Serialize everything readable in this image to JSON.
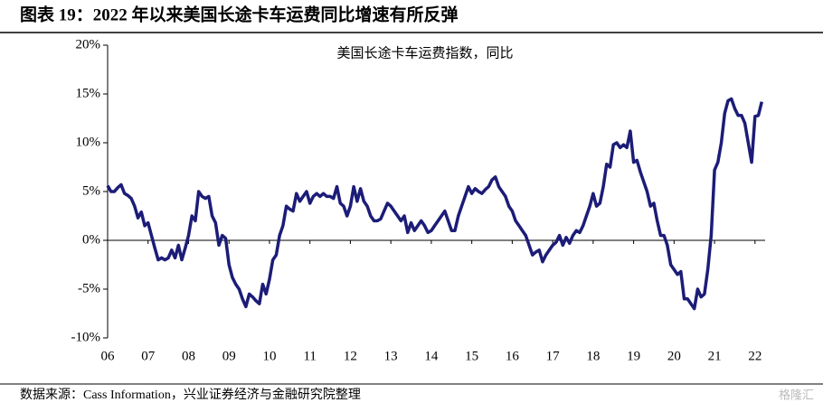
{
  "title": "图表 19：2022 年以来美国长途卡车运费同比增速有所反弹",
  "source": "数据来源：Cass Information，兴业证券经济与金融研究院整理",
  "watermark": "格隆汇",
  "chart_data": {
    "type": "line",
    "title": "美国长途卡车运费指数，同比",
    "xlim": [
      2006,
      2022.25
    ],
    "xticks": [
      {
        "value": 2006,
        "label": "06"
      },
      {
        "value": 2007,
        "label": "07"
      },
      {
        "value": 2008,
        "label": "08"
      },
      {
        "value": 2009,
        "label": "09"
      },
      {
        "value": 2010,
        "label": "10"
      },
      {
        "value": 2011,
        "label": "11"
      },
      {
        "value": 2012,
        "label": "12"
      },
      {
        "value": 2013,
        "label": "13"
      },
      {
        "value": 2014,
        "label": "14"
      },
      {
        "value": 2015,
        "label": "15"
      },
      {
        "value": 2016,
        "label": "16"
      },
      {
        "value": 2017,
        "label": "17"
      },
      {
        "value": 2018,
        "label": "18"
      },
      {
        "value": 2019,
        "label": "19"
      },
      {
        "value": 2020,
        "label": "20"
      },
      {
        "value": 2021,
        "label": "21"
      },
      {
        "value": 2022,
        "label": "22"
      }
    ],
    "ylim": [
      -10,
      20
    ],
    "yticks": [
      {
        "value": -10,
        "label": "-10%"
      },
      {
        "value": -5,
        "label": "-5%"
      },
      {
        "value": 0,
        "label": "0%"
      },
      {
        "value": 5,
        "label": "5%"
      },
      {
        "value": 10,
        "label": "10%"
      },
      {
        "value": 15,
        "label": "15%"
      },
      {
        "value": 20,
        "label": "20%"
      }
    ],
    "grid": false,
    "x": [
      2006,
      2006.083,
      2006.167,
      2006.25,
      2006.333,
      2006.417,
      2006.5,
      2006.583,
      2006.667,
      2006.75,
      2006.833,
      2006.917,
      2007,
      2007.083,
      2007.167,
      2007.25,
      2007.333,
      2007.417,
      2007.5,
      2007.583,
      2007.667,
      2007.75,
      2007.833,
      2007.917,
      2008,
      2008.083,
      2008.167,
      2008.25,
      2008.333,
      2008.417,
      2008.5,
      2008.583,
      2008.667,
      2008.75,
      2008.833,
      2008.917,
      2009,
      2009.083,
      2009.167,
      2009.25,
      2009.333,
      2009.417,
      2009.5,
      2009.583,
      2009.667,
      2009.75,
      2009.833,
      2009.917,
      2010,
      2010.083,
      2010.167,
      2010.25,
      2010.333,
      2010.417,
      2010.5,
      2010.583,
      2010.667,
      2010.75,
      2010.833,
      2010.917,
      2011,
      2011.083,
      2011.167,
      2011.25,
      2011.333,
      2011.417,
      2011.5,
      2011.583,
      2011.667,
      2011.75,
      2011.833,
      2011.917,
      2012,
      2012.083,
      2012.167,
      2012.25,
      2012.333,
      2012.417,
      2012.5,
      2012.583,
      2012.667,
      2012.75,
      2012.833,
      2012.917,
      2013,
      2013.083,
      2013.167,
      2013.25,
      2013.333,
      2013.417,
      2013.5,
      2013.583,
      2013.667,
      2013.75,
      2013.833,
      2013.917,
      2014,
      2014.083,
      2014.167,
      2014.25,
      2014.333,
      2014.417,
      2014.5,
      2014.583,
      2014.667,
      2014.75,
      2014.833,
      2014.917,
      2015,
      2015.083,
      2015.167,
      2015.25,
      2015.333,
      2015.417,
      2015.5,
      2015.583,
      2015.667,
      2015.75,
      2015.833,
      2015.917,
      2016,
      2016.083,
      2016.167,
      2016.25,
      2016.333,
      2016.417,
      2016.5,
      2016.583,
      2016.667,
      2016.75,
      2016.833,
      2016.917,
      2017,
      2017.083,
      2017.167,
      2017.25,
      2017.333,
      2017.417,
      2017.5,
      2017.583,
      2017.667,
      2017.75,
      2017.833,
      2017.917,
      2018,
      2018.083,
      2018.167,
      2018.25,
      2018.333,
      2018.417,
      2018.5,
      2018.583,
      2018.667,
      2018.75,
      2018.833,
      2018.917,
      2019,
      2019.083,
      2019.167,
      2019.25,
      2019.333,
      2019.417,
      2019.5,
      2019.583,
      2019.667,
      2019.75,
      2019.833,
      2019.917,
      2020,
      2020.083,
      2020.167,
      2020.25,
      2020.333,
      2020.417,
      2020.5,
      2020.583,
      2020.667,
      2020.75,
      2020.833,
      2020.917,
      2021,
      2021.083,
      2021.167,
      2021.25,
      2021.333,
      2021.417,
      2021.5,
      2021.583,
      2021.667,
      2021.75,
      2021.833,
      2021.917,
      2022,
      2022.083,
      2022.167
    ],
    "series": [
      {
        "name": "美国长途卡车运费指数，同比",
        "color": "#1c1c78",
        "values": [
          5.6,
          5.0,
          5.0,
          5.4,
          5.7,
          4.8,
          4.6,
          4.3,
          3.5,
          2.3,
          2.9,
          1.5,
          1.8,
          0.5,
          -0.8,
          -2.0,
          -1.8,
          -2.0,
          -1.8,
          -1.0,
          -1.8,
          -0.5,
          -2.0,
          -0.8,
          0.5,
          2.5,
          2.0,
          5.0,
          4.5,
          4.3,
          4.5,
          2.5,
          1.8,
          -0.5,
          0.5,
          0.2,
          -2.5,
          -3.8,
          -4.5,
          -5.0,
          -6.0,
          -6.8,
          -5.5,
          -5.8,
          -6.2,
          -6.5,
          -4.5,
          -5.5,
          -4.0,
          -2.0,
          -1.5,
          0.5,
          1.5,
          3.5,
          3.2,
          3.0,
          4.8,
          4.0,
          4.5,
          5.0,
          3.8,
          4.5,
          4.8,
          4.5,
          4.8,
          4.5,
          4.5,
          4.3,
          5.5,
          3.8,
          3.5,
          2.5,
          3.5,
          5.5,
          4.0,
          5.3,
          4.0,
          3.5,
          2.5,
          2.0,
          2.0,
          2.2,
          3.0,
          3.8,
          3.5,
          3.0,
          2.5,
          2.0,
          2.5,
          0.8,
          1.8,
          1.0,
          1.5,
          2.0,
          1.5,
          0.8,
          1.0,
          1.5,
          2.0,
          2.5,
          3.0,
          2.0,
          1.0,
          1.0,
          2.5,
          3.5,
          4.5,
          5.5,
          4.8,
          5.3,
          5.0,
          4.8,
          5.2,
          5.5,
          6.2,
          6.5,
          5.5,
          5.0,
          4.5,
          3.5,
          3.0,
          2.0,
          1.5,
          1.0,
          0.5,
          -0.5,
          -1.5,
          -1.2,
          -1.0,
          -2.2,
          -1.5,
          -1.0,
          -0.5,
          -0.2,
          0.5,
          -0.5,
          0.3,
          -0.3,
          0.5,
          1.0,
          0.8,
          1.5,
          2.5,
          3.5,
          4.8,
          3.5,
          3.8,
          5.5,
          7.8,
          7.5,
          9.8,
          10.0,
          9.5,
          9.8,
          9.5,
          11.2,
          8.0,
          8.2,
          7.0,
          6.0,
          5.0,
          3.5,
          3.8,
          2.0,
          0.5,
          0.5,
          -0.5,
          -2.5,
          -3.0,
          -3.5,
          -3.2,
          -6.0,
          -6.0,
          -6.5,
          -7.0,
          -5.0,
          -5.8,
          -5.5,
          -3.0,
          0.5,
          7.2,
          8.0,
          10.0,
          13.0,
          14.3,
          14.5,
          13.5,
          12.8,
          12.8,
          12.0,
          10.0,
          8.0,
          12.7,
          12.8,
          14.2
        ]
      }
    ]
  }
}
